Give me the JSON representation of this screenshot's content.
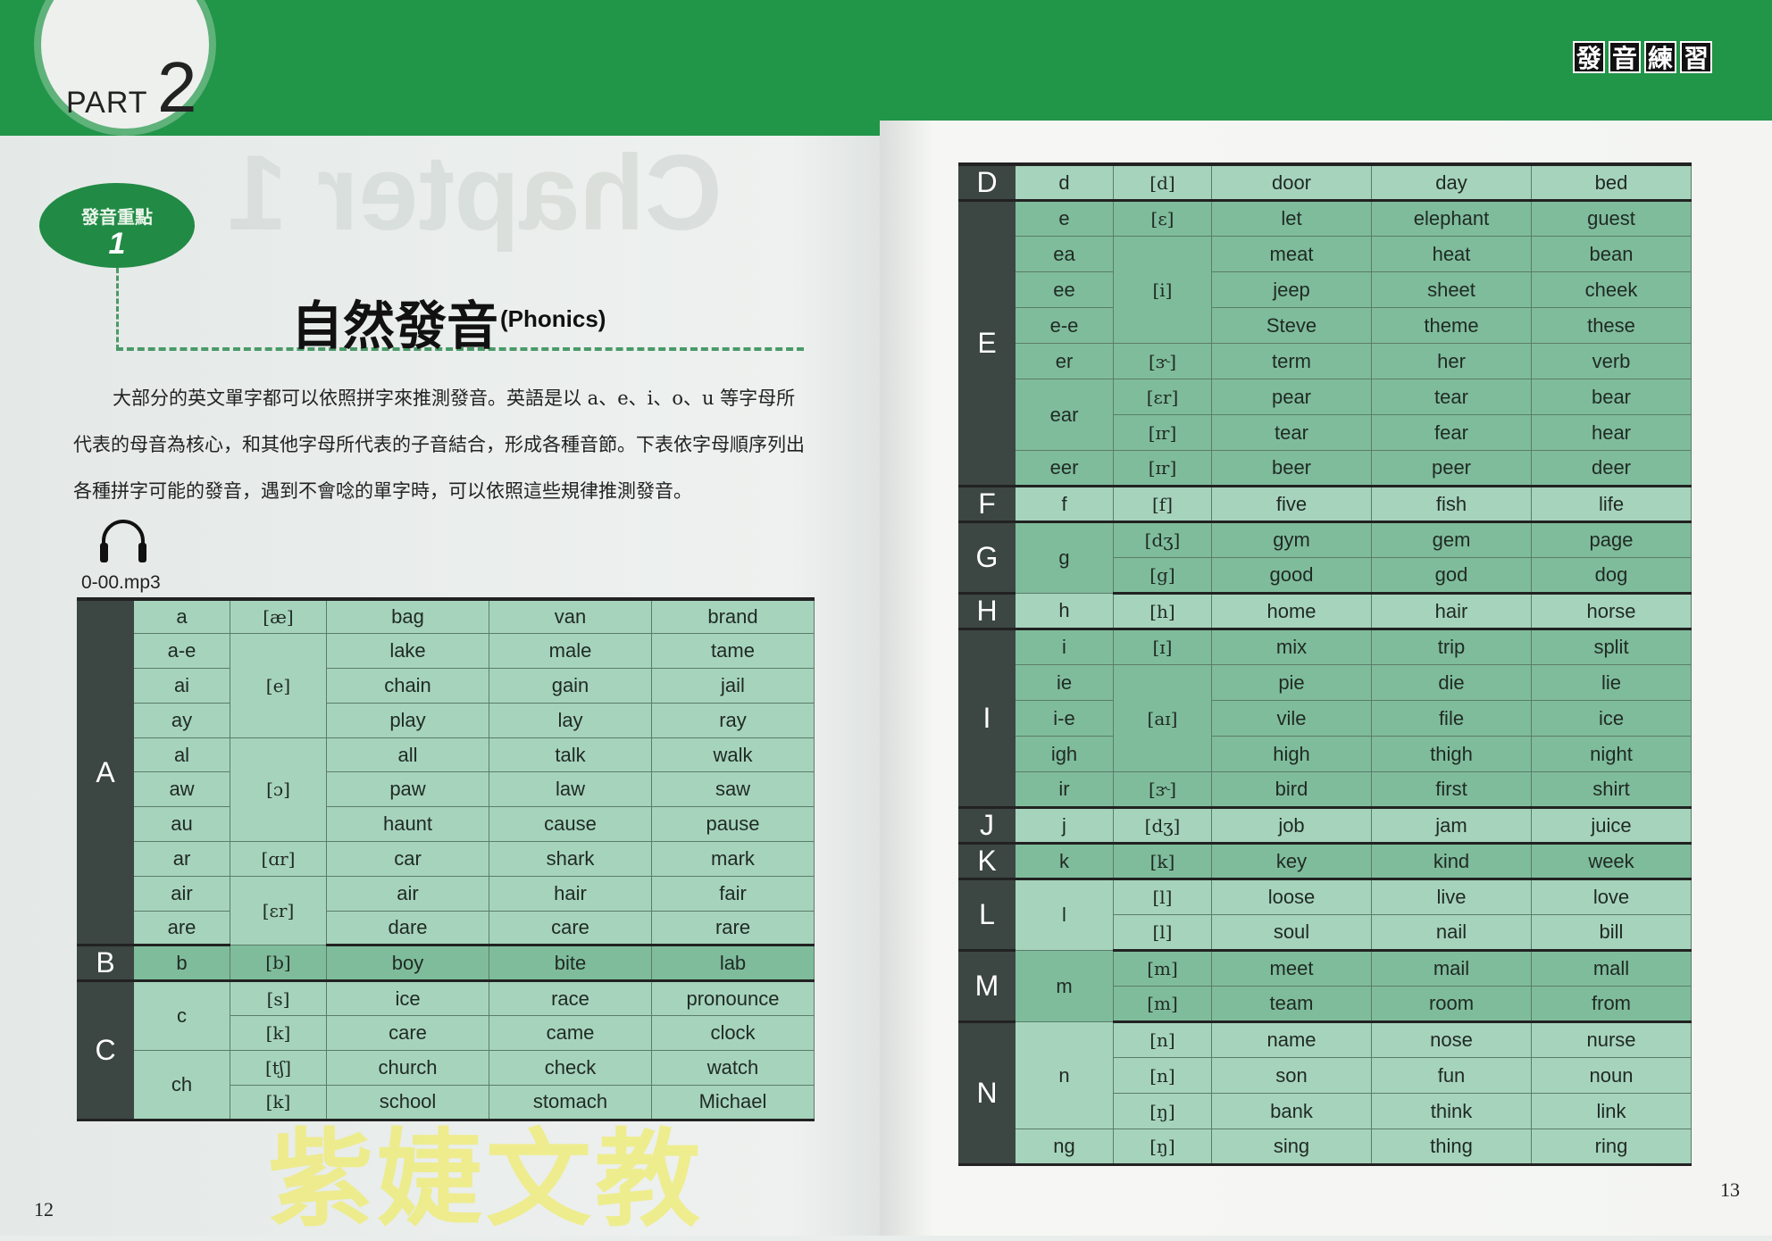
{
  "header": {
    "part_label": "PART",
    "part_number": "2",
    "section_tag": [
      "發",
      "音",
      "練",
      "習"
    ],
    "ghost_text": "Chapter 1"
  },
  "section": {
    "badge_label": "發音重點",
    "badge_number": "1",
    "title": "自然發音",
    "title_en": "(Phonics)"
  },
  "intro": "大部分的英文單字都可以依照拼字來推測發音。英語是以 a、e、i、o、u 等字母所代表的母音為核心，和其他字母所代表的子音結合，形成各種音節。下表依字母順序列出各種拼字可能的發音，遇到不會唸的單字時，可以依照這些規律推測發音。",
  "audio": {
    "icon": "headphones-icon",
    "file": "0-00.mp3"
  },
  "watermark": "紫婕文教",
  "page_numbers": {
    "left": "12",
    "right": "13"
  },
  "colors": {
    "brand_green": "#219548",
    "row_light": "#a6d3bc",
    "row_dark": "#7fbc9b",
    "letter_col": "#3c4643"
  },
  "left_table": [
    {
      "letter": "A",
      "rows": [
        {
          "s": "a",
          "p": "[æ]",
          "w": [
            "bag",
            "van",
            "brand"
          ]
        },
        {
          "s": "a-e",
          "p": "[e]",
          "pspan": 3,
          "w": [
            "lake",
            "male",
            "tame"
          ]
        },
        {
          "s": "ai",
          "w": [
            "chain",
            "gain",
            "jail"
          ]
        },
        {
          "s": "ay",
          "w": [
            "play",
            "lay",
            "ray"
          ]
        },
        {
          "s": "al",
          "p": "[ɔ]",
          "pspan": 3,
          "w": [
            "all",
            "talk",
            "walk"
          ]
        },
        {
          "s": "aw",
          "w": [
            "paw",
            "law",
            "saw"
          ]
        },
        {
          "s": "au",
          "w": [
            "haunt",
            "cause",
            "pause"
          ]
        },
        {
          "s": "ar",
          "p": "[ɑr]",
          "w": [
            "car",
            "shark",
            "mark"
          ]
        },
        {
          "s": "air",
          "p": "[ɛr]",
          "pspan": 2,
          "w": [
            "air",
            "hair",
            "fair"
          ]
        },
        {
          "s": "are",
          "w": [
            "dare",
            "care",
            "rare"
          ]
        }
      ]
    },
    {
      "letter": "B",
      "rows": [
        {
          "s": "b",
          "p": "[b]",
          "w": [
            "boy",
            "bite",
            "lab"
          ]
        }
      ]
    },
    {
      "letter": "C",
      "rows": [
        {
          "s": "c",
          "sspan": 2,
          "p": "[s]",
          "w": [
            "ice",
            "race",
            "pronounce"
          ]
        },
        {
          "p": "[k]",
          "w": [
            "care",
            "came",
            "clock"
          ]
        },
        {
          "s": "ch",
          "sspan": 2,
          "p": "[tʃ]",
          "w": [
            "church",
            "check",
            "watch"
          ]
        },
        {
          "p": "[k]",
          "w": [
            "school",
            "stomach",
            "Michael"
          ]
        }
      ]
    }
  ],
  "right_table": [
    {
      "letter": "D",
      "rows": [
        {
          "s": "d",
          "p": "[d]",
          "w": [
            "door",
            "day",
            "bed"
          ]
        }
      ]
    },
    {
      "letter": "E",
      "rows": [
        {
          "s": "e",
          "p": "[ɛ]",
          "w": [
            "let",
            "elephant",
            "guest"
          ]
        },
        {
          "s": "ea",
          "p": "[i]",
          "pspan": 3,
          "w": [
            "meat",
            "heat",
            "bean"
          ]
        },
        {
          "s": "ee",
          "w": [
            "jeep",
            "sheet",
            "cheek"
          ]
        },
        {
          "s": "e-e",
          "w": [
            "Steve",
            "theme",
            "these"
          ]
        },
        {
          "s": "er",
          "p": "[ɝ]",
          "w": [
            "term",
            "her",
            "verb"
          ]
        },
        {
          "s": "ear",
          "sspan": 2,
          "p": "[ɛr]",
          "w": [
            "pear",
            "tear",
            "bear"
          ]
        },
        {
          "p": "[ɪr]",
          "w": [
            "tear",
            "fear",
            "hear"
          ]
        },
        {
          "s": "eer",
          "p": "[ɪr]",
          "w": [
            "beer",
            "peer",
            "deer"
          ]
        }
      ]
    },
    {
      "letter": "F",
      "rows": [
        {
          "s": "f",
          "p": "[f]",
          "w": [
            "five",
            "fish",
            "life"
          ]
        }
      ]
    },
    {
      "letter": "G",
      "rows": [
        {
          "s": "g",
          "sspan": 2,
          "p": "[dʒ]",
          "w": [
            "gym",
            "gem",
            "page"
          ]
        },
        {
          "p": "[g]",
          "w": [
            "good",
            "god",
            "dog"
          ]
        }
      ]
    },
    {
      "letter": "H",
      "rows": [
        {
          "s": "h",
          "p": "[h]",
          "w": [
            "home",
            "hair",
            "horse"
          ]
        }
      ]
    },
    {
      "letter": "I",
      "rows": [
        {
          "s": "i",
          "p": "[ɪ]",
          "w": [
            "mix",
            "trip",
            "split"
          ]
        },
        {
          "s": "ie",
          "p": "[aɪ]",
          "pspan": 3,
          "w": [
            "pie",
            "die",
            "lie"
          ]
        },
        {
          "s": "i-e",
          "w": [
            "vile",
            "file",
            "ice"
          ]
        },
        {
          "s": "igh",
          "w": [
            "high",
            "thigh",
            "night"
          ]
        },
        {
          "s": "ir",
          "p": "[ɝ]",
          "w": [
            "bird",
            "first",
            "shirt"
          ]
        }
      ]
    },
    {
      "letter": "J",
      "rows": [
        {
          "s": "j",
          "p": "[dʒ]",
          "w": [
            "job",
            "jam",
            "juice"
          ]
        }
      ]
    },
    {
      "letter": "K",
      "rows": [
        {
          "s": "k",
          "p": "[k]",
          "w": [
            "key",
            "kind",
            "week"
          ]
        }
      ]
    },
    {
      "letter": "L",
      "rows": [
        {
          "s": "l",
          "sspan": 2,
          "p": "[l]",
          "w": [
            "loose",
            "live",
            "love"
          ]
        },
        {
          "p": "[l]",
          "w": [
            "soul",
            "nail",
            "bill"
          ]
        }
      ]
    },
    {
      "letter": "M",
      "rows": [
        {
          "s": "m",
          "sspan": 2,
          "p": "[m]",
          "w": [
            "meet",
            "mail",
            "mall"
          ]
        },
        {
          "p": "[m]",
          "w": [
            "team",
            "room",
            "from"
          ]
        }
      ]
    },
    {
      "letter": "N",
      "rows": [
        {
          "s": "n",
          "sspan": 3,
          "p": "[n]",
          "w": [
            "name",
            "nose",
            "nurse"
          ]
        },
        {
          "p": "[n]",
          "w": [
            "son",
            "fun",
            "noun"
          ]
        },
        {
          "p": "[ŋ]",
          "w": [
            "bank",
            "think",
            "link"
          ]
        },
        {
          "s": "ng",
          "p": "[ŋ]",
          "w": [
            "sing",
            "thing",
            "ring"
          ]
        }
      ]
    }
  ]
}
